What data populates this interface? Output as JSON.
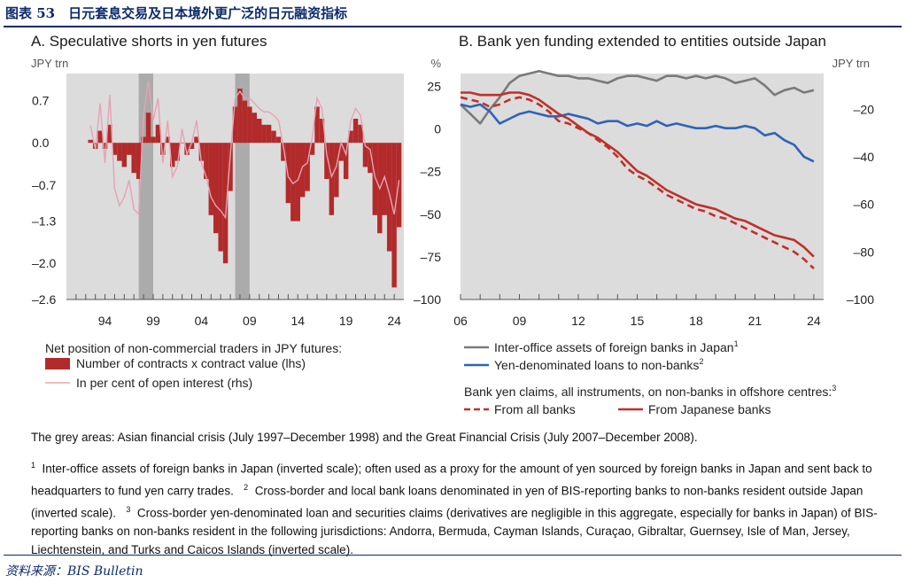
{
  "figure_title": "图表 53　日元套息交易及日本境外更广泛的日元融资指标",
  "source": "资料来源：BIS Bulletin",
  "grey_areas_note": "The grey areas: Asian financial crisis (July 1997–December 1998) and the Great Financial Crisis (July 2007–December 2008).",
  "footnotes": [
    {
      "mark": "1",
      "text": "Inter-office assets of foreign banks in Japan (inverted scale); often used as a proxy for the amount of yen sourced by foreign banks in Japan and sent back to headquarters to fund yen carry trades."
    },
    {
      "mark": "2",
      "text": "Cross-border and local bank loans denominated in yen of BIS-reporting banks to non-banks resident outside Japan (inverted scale)."
    },
    {
      "mark": "3",
      "text": "Cross-border yen-denominated loan and securities claims (derivatives are negligible in this aggregate, especially for banks in Japan) of BIS-reporting banks on non-banks resident in the following jurisdictions: Andorra, Bermuda, Cayman Islands, Curaçao, Gibraltar, Guernsey, Isle of Man, Jersey, Liechtenstein, and Turks and Caicos Islands (inverted scale)."
    }
  ],
  "colors": {
    "bar": "#b22a2a",
    "pink": "#e5a3b2",
    "grey_line": "#7a7a7a",
    "blue_line": "#2f63b6",
    "red_line": "#c0302b",
    "plot_bg": "#dcdcdc",
    "shade": "#ababab",
    "title": "#0c2a6b"
  },
  "chart_data": [
    {
      "type": "bar",
      "title": "A. Speculative shorts in yen futures",
      "left_unit": "JPY trn",
      "right_unit": "%",
      "x_range": [
        1990,
        2025
      ],
      "x_ticks": [
        1994,
        1999,
        2004,
        2009,
        2014,
        2019,
        2024
      ],
      "x_tick_labels": [
        "94",
        "99",
        "04",
        "09",
        "14",
        "19",
        "24"
      ],
      "left_ylim": [
        -2.6,
        1.15
      ],
      "left_ticks": [
        0.7,
        0.0,
        -0.7,
        -1.3,
        -2.0,
        -2.6
      ],
      "left_tick_labels": [
        "0.7",
        "0.0",
        "–0.7",
        "–1.3",
        "–2.0",
        "–2.6"
      ],
      "right_ylim": [
        -100,
        32.5
      ],
      "right_ticks": [
        25,
        0,
        -25,
        -50,
        -75,
        -100
      ],
      "right_tick_labels": [
        "25",
        "0",
        "–25",
        "–50",
        "–75",
        "–100"
      ],
      "shaded_periods": [
        [
          1997.5,
          1999.0
        ],
        [
          2007.5,
          2009.0
        ]
      ],
      "legend_header": "Net position of non-commercial traders in JPY futures:",
      "series": [
        {
          "name": "Number of contracts x contract value (lhs)",
          "style": "bar",
          "axis": "left",
          "x": [
            1992.5,
            1993.0,
            1993.5,
            1994.0,
            1994.5,
            1995.0,
            1995.5,
            1996.0,
            1996.5,
            1997.0,
            1997.5,
            1998.0,
            1998.5,
            1999.0,
            1999.5,
            2000.0,
            2000.5,
            2001.0,
            2001.5,
            2002.0,
            2002.5,
            2003.0,
            2003.5,
            2004.0,
            2004.5,
            2005.0,
            2005.5,
            2006.0,
            2006.5,
            2007.0,
            2007.5,
            2008.0,
            2008.5,
            2009.0,
            2009.5,
            2010.0,
            2010.5,
            2011.0,
            2011.5,
            2012.0,
            2012.5,
            2013.0,
            2013.5,
            2014.0,
            2014.5,
            2015.0,
            2015.5,
            2016.0,
            2016.5,
            2017.0,
            2017.5,
            2018.0,
            2018.5,
            2019.0,
            2019.5,
            2020.0,
            2020.5,
            2021.0,
            2021.5,
            2022.0,
            2022.5,
            2023.0,
            2023.5,
            2024.0,
            2024.5
          ],
          "values": [
            0.05,
            -0.1,
            0.2,
            -0.1,
            0.3,
            -0.2,
            -0.3,
            -0.4,
            -0.2,
            -0.5,
            -0.6,
            0.1,
            0.5,
            0.1,
            0.3,
            -0.2,
            0.1,
            -0.4,
            -0.3,
            0.0,
            -0.2,
            -0.1,
            0.1,
            -0.3,
            -0.6,
            -1.2,
            -1.5,
            -1.8,
            -2.0,
            -0.8,
            0.6,
            0.9,
            0.7,
            0.6,
            0.5,
            0.4,
            0.3,
            0.3,
            0.2,
            0.1,
            -0.3,
            -1.0,
            -1.3,
            -1.3,
            -0.9,
            -0.8,
            -0.2,
            0.6,
            0.4,
            -0.6,
            -1.2,
            -0.9,
            -0.3,
            -0.6,
            0.2,
            0.4,
            0.3,
            -0.4,
            -0.5,
            -1.2,
            -1.5,
            -1.2,
            -1.8,
            -2.4,
            -1.4
          ]
        },
        {
          "name": "In per cent of open interest (rhs)",
          "style": "line",
          "axis": "right",
          "x": [
            1992.5,
            1993.0,
            1993.5,
            1994.0,
            1994.5,
            1995.0,
            1995.5,
            1996.0,
            1996.5,
            1997.0,
            1997.5,
            1998.0,
            1998.5,
            1999.0,
            1999.5,
            2000.0,
            2000.5,
            2001.0,
            2001.5,
            2002.0,
            2002.5,
            2003.0,
            2003.5,
            2004.0,
            2004.5,
            2005.0,
            2005.5,
            2006.0,
            2006.5,
            2007.0,
            2007.5,
            2008.0,
            2008.5,
            2009.0,
            2009.5,
            2010.0,
            2010.5,
            2011.0,
            2011.5,
            2012.0,
            2012.5,
            2013.0,
            2013.5,
            2014.0,
            2014.5,
            2015.0,
            2015.5,
            2016.0,
            2016.5,
            2017.0,
            2017.5,
            2018.0,
            2018.5,
            2019.0,
            2019.5,
            2020.0,
            2020.5,
            2021.0,
            2021.5,
            2022.0,
            2022.5,
            2023.0,
            2023.5,
            2024.0,
            2024.5
          ],
          "values": [
            2,
            -12,
            15,
            -20,
            20,
            -35,
            -45,
            -40,
            -30,
            -47,
            -50,
            8,
            28,
            5,
            18,
            -20,
            5,
            -28,
            -22,
            0,
            -15,
            -8,
            5,
            -20,
            -28,
            -40,
            -45,
            -48,
            -52,
            -15,
            18,
            22,
            18,
            18,
            15,
            12,
            10,
            10,
            8,
            5,
            -10,
            -28,
            -32,
            -30,
            -22,
            -20,
            -5,
            18,
            12,
            -15,
            -28,
            -22,
            -8,
            -15,
            5,
            12,
            8,
            -10,
            -12,
            -28,
            -35,
            -28,
            -38,
            -50,
            -30
          ]
        }
      ]
    },
    {
      "type": "line",
      "title": "B. Bank yen funding extended to entities outside Japan",
      "right_unit": "JPY trn",
      "x_range": [
        2006,
        2024.5
      ],
      "x_ticks": [
        2006,
        2009,
        2012,
        2015,
        2018,
        2021,
        2024
      ],
      "x_tick_labels": [
        "06",
        "09",
        "12",
        "15",
        "18",
        "21",
        "24"
      ],
      "ylim_inverted": [
        -5,
        -100
      ],
      "y_ticks": [
        -20,
        -40,
        -60,
        -80,
        -100
      ],
      "y_tick_labels": [
        "–20",
        "–40",
        "–60",
        "–80",
        "–100"
      ],
      "series": [
        {
          "name": "Inter-office assets of foreign banks in Japan",
          "note": "1",
          "style": "solid",
          "x": [
            2006.0,
            2006.5,
            2007.0,
            2007.5,
            2008.0,
            2008.5,
            2009.0,
            2009.5,
            2010.0,
            2010.5,
            2011.0,
            2011.5,
            2012.0,
            2012.5,
            2013.0,
            2013.5,
            2014.0,
            2014.5,
            2015.0,
            2015.5,
            2016.0,
            2016.5,
            2017.0,
            2017.5,
            2018.0,
            2018.5,
            2019.0,
            2019.5,
            2020.0,
            2020.5,
            2021.0,
            2021.5,
            2022.0,
            2022.5,
            2023.0,
            2023.5,
            2024.0
          ],
          "values": [
            -18,
            -22,
            -26,
            -20,
            -15,
            -9,
            -6,
            -5,
            -4,
            -5,
            -6,
            -6,
            -7,
            -7,
            -8,
            -9,
            -7,
            -6,
            -6,
            -7,
            -8,
            -6,
            -6,
            -7,
            -6,
            -7,
            -6,
            -7,
            -9,
            -8,
            -7,
            -10,
            -14,
            -12,
            -11,
            -13,
            -12
          ]
        },
        {
          "name": "Yen-denominated loans to non-banks",
          "note": "2",
          "style": "solid",
          "x": [
            2006.0,
            2006.5,
            2007.0,
            2007.5,
            2008.0,
            2008.5,
            2009.0,
            2009.5,
            2010.0,
            2010.5,
            2011.0,
            2011.5,
            2012.0,
            2012.5,
            2013.0,
            2013.5,
            2014.0,
            2014.5,
            2015.0,
            2015.5,
            2016.0,
            2016.5,
            2017.0,
            2017.5,
            2018.0,
            2018.5,
            2019.0,
            2019.5,
            2020.0,
            2020.5,
            2021.0,
            2021.5,
            2022.0,
            2022.5,
            2023.0,
            2023.5,
            2024.0
          ],
          "values": [
            -18,
            -19,
            -18,
            -21,
            -26,
            -24,
            -22,
            -21,
            -22,
            -23,
            -23,
            -22,
            -23,
            -24,
            -26,
            -25,
            -25,
            -27,
            -26,
            -27,
            -25,
            -27,
            -26,
            -27,
            -28,
            -28,
            -27,
            -28,
            -28,
            -27,
            -28,
            -31,
            -30,
            -33,
            -35,
            -40,
            -42
          ]
        },
        {
          "name": "From all banks",
          "style": "dashed",
          "x": [
            2006.0,
            2006.5,
            2007.0,
            2007.5,
            2008.0,
            2008.5,
            2009.0,
            2009.5,
            2010.0,
            2010.5,
            2011.0,
            2011.5,
            2012.0,
            2012.5,
            2013.0,
            2013.5,
            2014.0,
            2014.5,
            2015.0,
            2015.5,
            2016.0,
            2016.5,
            2017.0,
            2017.5,
            2018.0,
            2018.5,
            2019.0,
            2019.5,
            2020.0,
            2020.5,
            2021.0,
            2021.5,
            2022.0,
            2022.5,
            2023.0,
            2023.5,
            2024.0
          ],
          "values": [
            -15,
            -16,
            -17,
            -19,
            -18,
            -16,
            -15,
            -16,
            -18,
            -21,
            -25,
            -26,
            -28,
            -30,
            -33,
            -36,
            -40,
            -45,
            -48,
            -50,
            -53,
            -56,
            -58,
            -60,
            -62,
            -63,
            -65,
            -66,
            -68,
            -70,
            -72,
            -74,
            -76,
            -78,
            -80,
            -83,
            -87
          ]
        },
        {
          "name": "From Japanese banks",
          "style": "solid",
          "x": [
            2006.0,
            2006.5,
            2007.0,
            2007.5,
            2008.0,
            2008.5,
            2009.0,
            2009.5,
            2010.0,
            2010.5,
            2011.0,
            2011.5,
            2012.0,
            2012.5,
            2013.0,
            2013.5,
            2014.0,
            2014.5,
            2015.0,
            2015.5,
            2016.0,
            2016.5,
            2017.0,
            2017.5,
            2018.0,
            2018.5,
            2019.0,
            2019.5,
            2020.0,
            2020.5,
            2021.0,
            2021.5,
            2022.0,
            2022.5,
            2023.0,
            2023.5,
            2024.0
          ],
          "values": [
            -13,
            -13,
            -14,
            -14,
            -14,
            -13,
            -13,
            -14,
            -16,
            -19,
            -22,
            -24,
            -27,
            -30,
            -32,
            -35,
            -38,
            -42,
            -46,
            -48,
            -51,
            -54,
            -56,
            -58,
            -60,
            -61,
            -62,
            -64,
            -66,
            -67,
            -69,
            -71,
            -73,
            -74,
            -75,
            -78,
            -82
          ]
        }
      ],
      "legend_header": "Bank yen claims, all instruments, on non-banks in offshore centres:",
      "legend_header_note": "3"
    }
  ]
}
